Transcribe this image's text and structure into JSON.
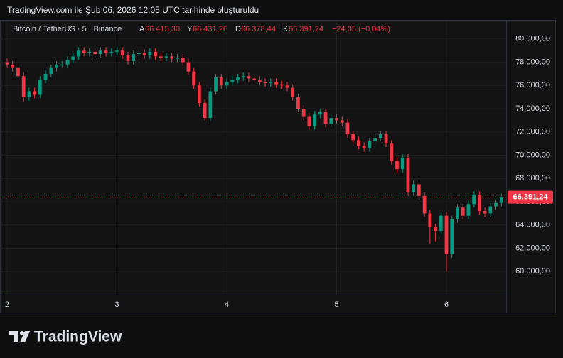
{
  "header": {
    "caption": "TradingView.com ile Şub 06, 2026 12:05 UTC tarihinde oluşturuldu",
    "symbol": "Bitcoin / TetherUS · 5 · Binance",
    "ohlc": [
      {
        "key": "A",
        "value": "66.415,30"
      },
      {
        "key": "Y",
        "value": "66.431,26"
      },
      {
        "key": "D",
        "value": "66.378,44"
      },
      {
        "key": "K",
        "value": "66.391,24"
      }
    ],
    "change": "−24,05 (−0,04%)"
  },
  "footer": {
    "brand": "TradingView"
  },
  "chart_data": {
    "type": "candlestick",
    "up_color": "#089981",
    "down_color": "#f23645",
    "open": [
      78000,
      77800,
      77500,
      76800,
      75000,
      75500,
      75200,
      76500,
      77000,
      77500,
      77800,
      77800,
      78200,
      78500,
      79000,
      78800,
      78900,
      78700,
      79000,
      78800,
      78900,
      79000,
      78600,
      78100,
      78700,
      78800,
      78600,
      78900,
      78500,
      78400,
      78500,
      78300,
      78400,
      78000,
      77200,
      76000,
      74500,
      73200,
      75500,
      76700,
      76000,
      76300,
      76500,
      76700,
      76800,
      76600,
      76500,
      76300,
      76200,
      76300,
      76100,
      76000,
      75800,
      75000,
      74000,
      73300,
      72500,
      73500,
      73700,
      72700,
      73200,
      73000,
      72800,
      71800,
      71300,
      70800,
      70600,
      71200,
      71500,
      71800,
      71000,
      69500,
      68800,
      69800,
      66800,
      67500,
      66500,
      65000,
      63800,
      63500,
      64800,
      61500,
      64500,
      65500,
      64800,
      65800,
      66600,
      65200,
      65000,
      65600,
      65900
    ],
    "high": [
      78300,
      78100,
      77800,
      77100,
      75800,
      75800,
      76800,
      77300,
      77800,
      78100,
      78100,
      78500,
      78800,
      79300,
      79300,
      79200,
      79200,
      79300,
      79300,
      79200,
      79300,
      79300,
      78900,
      79000,
      79100,
      79100,
      79200,
      79200,
      78800,
      78800,
      78800,
      78700,
      78700,
      78300,
      77500,
      76300,
      74800,
      75800,
      77000,
      77000,
      76600,
      76800,
      77000,
      77100,
      77100,
      76900,
      76800,
      76600,
      76600,
      76600,
      76400,
      76300,
      76100,
      75300,
      74300,
      73600,
      73800,
      74000,
      74000,
      73500,
      73500,
      73300,
      73100,
      72100,
      71600,
      71100,
      71500,
      71800,
      72100,
      72100,
      71300,
      69800,
      70100,
      70100,
      67800,
      67800,
      66800,
      65300,
      64100,
      65100,
      65100,
      64800,
      65800,
      65800,
      66100,
      66900,
      66900,
      65500,
      65900,
      66200,
      66700
    ],
    "low": [
      77500,
      77200,
      76500,
      74600,
      74700,
      74900,
      74900,
      76200,
      76700,
      77200,
      77500,
      77500,
      77900,
      78200,
      78500,
      78500,
      78400,
      78400,
      78500,
      78500,
      78600,
      78300,
      77800,
      77800,
      78400,
      78300,
      78300,
      78200,
      78100,
      78100,
      78000,
      78000,
      77700,
      76900,
      75700,
      74200,
      73000,
      72900,
      75200,
      75700,
      75700,
      76000,
      76200,
      76400,
      76300,
      76200,
      76000,
      75900,
      75900,
      75800,
      75700,
      75500,
      74700,
      73700,
      73000,
      72200,
      72200,
      73200,
      72400,
      72400,
      72700,
      72500,
      71500,
      71000,
      70500,
      70300,
      70300,
      70900,
      71200,
      70700,
      69200,
      68500,
      68500,
      66500,
      66500,
      66200,
      64700,
      62400,
      62600,
      63200,
      60000,
      61200,
      64200,
      64500,
      64500,
      65500,
      64900,
      64700,
      64700,
      65300,
      65600
    ],
    "close": [
      77800,
      77500,
      76800,
      75000,
      75500,
      75200,
      76500,
      77000,
      77500,
      77800,
      77800,
      78200,
      78500,
      79000,
      78800,
      78900,
      78700,
      79000,
      78800,
      78900,
      79000,
      78600,
      78100,
      78700,
      78800,
      78600,
      78900,
      78500,
      78400,
      78500,
      78300,
      78400,
      78000,
      77200,
      76000,
      74500,
      73200,
      75500,
      76700,
      76000,
      76300,
      76500,
      76700,
      76800,
      76600,
      76500,
      76300,
      76200,
      76300,
      76100,
      76000,
      75800,
      75000,
      74000,
      73300,
      72500,
      73500,
      73700,
      72700,
      73200,
      73000,
      72800,
      71800,
      71300,
      70800,
      70600,
      71200,
      71500,
      71800,
      71000,
      69500,
      68800,
      69800,
      66800,
      67500,
      66500,
      65000,
      63800,
      63500,
      64800,
      61500,
      64500,
      65500,
      64800,
      65800,
      66600,
      65200,
      65000,
      65600,
      65900,
      66391.24
    ],
    "last_price": 66391.24,
    "last_price_label": "66.391,24",
    "xlim": [
      0,
      91
    ],
    "xticks": [
      {
        "value": 0,
        "label": "2"
      },
      {
        "value": 20,
        "label": "3"
      },
      {
        "value": 40,
        "label": "4"
      },
      {
        "value": 60,
        "label": "5"
      },
      {
        "value": 80,
        "label": "6"
      }
    ],
    "ylim": [
      58000,
      81150
    ],
    "yticks": [
      {
        "value": 60000,
        "label": "60.000,00"
      },
      {
        "value": 62000,
        "label": "62.000,00"
      },
      {
        "value": 64000,
        "label": "64.000,00"
      },
      {
        "value": 66000,
        "label": "66.000,00"
      },
      {
        "value": 68000,
        "label": "68.000,00"
      },
      {
        "value": 70000,
        "label": "70.000,00"
      },
      {
        "value": 72000,
        "label": "72.000,00"
      },
      {
        "value": 74000,
        "label": "74.000,00"
      },
      {
        "value": 76000,
        "label": "76.000,00"
      },
      {
        "value": 78000,
        "label": "78.000,00"
      },
      {
        "value": 80000,
        "label": "80.000,00"
      }
    ],
    "grid": true
  }
}
